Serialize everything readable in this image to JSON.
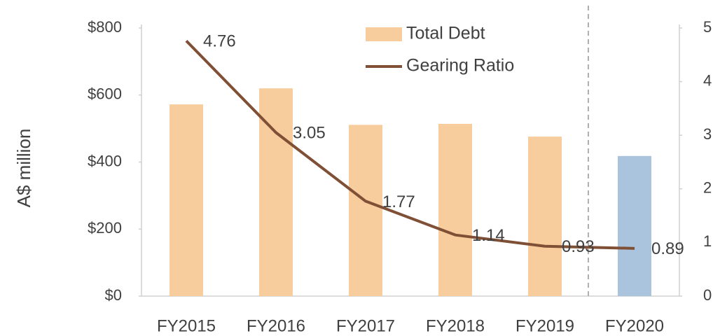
{
  "chart_data": {
    "type": "bar",
    "y_label": "A$ million",
    "categories": [
      "FY2015",
      "FY2016",
      "FY2017",
      "FY2018",
      "FY2019",
      "FY2020"
    ],
    "series": [
      {
        "name": "Total Debt",
        "type": "bar",
        "color": "#f7cd9d",
        "colors": [
          "#f7cd9d",
          "#f7cd9d",
          "#f7cd9d",
          "#f7cd9d",
          "#f7cd9d",
          "#a9c4dc"
        ],
        "values": [
          572,
          620,
          511,
          514,
          476,
          418
        ]
      },
      {
        "name": "Gearing Ratio",
        "type": "line",
        "axis": "y2",
        "color": "#7f4f36",
        "values": [
          4.76,
          3.05,
          1.77,
          1.14,
          0.93,
          0.89
        ]
      }
    ],
    "ylim": [
      0,
      800
    ],
    "yticks": [
      {
        "value": 0,
        "label": "$0"
      },
      {
        "value": 200,
        "label": "$200"
      },
      {
        "value": 400,
        "label": "$400"
      },
      {
        "value": 600,
        "label": "$600"
      },
      {
        "value": 800,
        "label": "$800"
      }
    ],
    "y2lim": [
      0,
      5
    ],
    "y2ticks": [
      0,
      1,
      2,
      3,
      4,
      5
    ],
    "legend": "top"
  }
}
